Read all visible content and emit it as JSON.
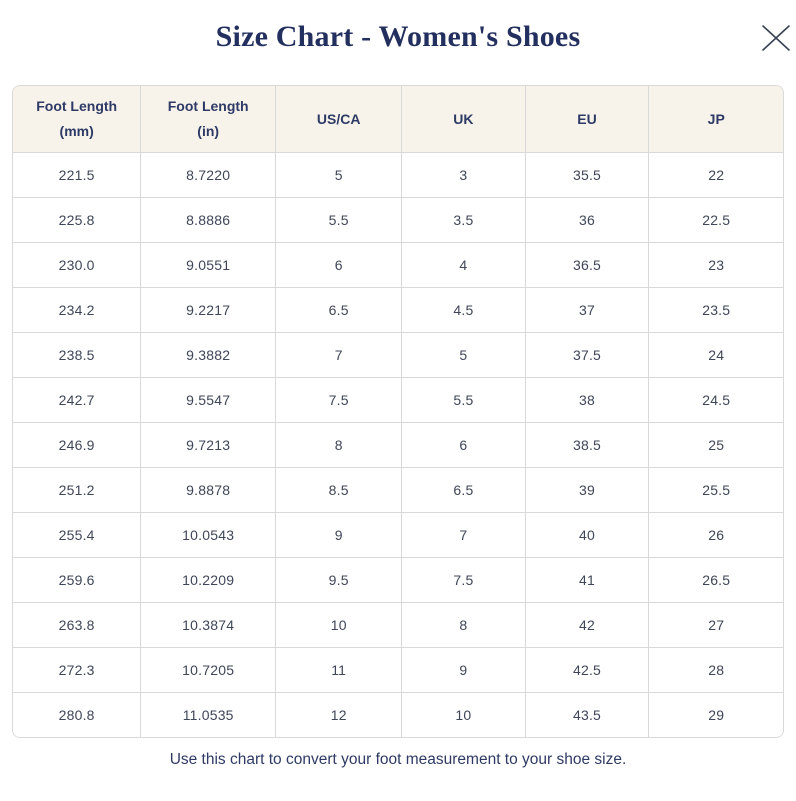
{
  "modal": {
    "title": "Size Chart - Women's Shoes",
    "footer_note": "Use this chart to convert your foot measurement to your shoe size.",
    "close_icon": "x-close"
  },
  "colors": {
    "title_text": "#232f5e",
    "header_bg": "#f7f3ea",
    "header_text": "#2e3a66",
    "cell_text": "#3f4657",
    "border": "#d9d9d9",
    "close_icon_stroke": "#3b4254"
  },
  "table": {
    "headers": [
      {
        "line1": "Foot Length",
        "line2": "(mm)"
      },
      {
        "line1": "Foot Length",
        "line2": "(in)"
      },
      {
        "line1": "US/CA",
        "line2": ""
      },
      {
        "line1": "UK",
        "line2": ""
      },
      {
        "line1": "EU",
        "line2": ""
      },
      {
        "line1": "JP",
        "line2": ""
      }
    ],
    "rows": [
      [
        "221.5",
        "8.7220",
        "5",
        "3",
        "35.5",
        "22"
      ],
      [
        "225.8",
        "8.8886",
        "5.5",
        "3.5",
        "36",
        "22.5"
      ],
      [
        "230.0",
        "9.0551",
        "6",
        "4",
        "36.5",
        "23"
      ],
      [
        "234.2",
        "9.2217",
        "6.5",
        "4.5",
        "37",
        "23.5"
      ],
      [
        "238.5",
        "9.3882",
        "7",
        "5",
        "37.5",
        "24"
      ],
      [
        "242.7",
        "9.5547",
        "7.5",
        "5.5",
        "38",
        "24.5"
      ],
      [
        "246.9",
        "9.7213",
        "8",
        "6",
        "38.5",
        "25"
      ],
      [
        "251.2",
        "9.8878",
        "8.5",
        "6.5",
        "39",
        "25.5"
      ],
      [
        "255.4",
        "10.0543",
        "9",
        "7",
        "40",
        "26"
      ],
      [
        "259.6",
        "10.2209",
        "9.5",
        "7.5",
        "41",
        "26.5"
      ],
      [
        "263.8",
        "10.3874",
        "10",
        "8",
        "42",
        "27"
      ],
      [
        "272.3",
        "10.7205",
        "11",
        "9",
        "42.5",
        "28"
      ],
      [
        "280.8",
        "11.0535",
        "12",
        "10",
        "43.5",
        "29"
      ]
    ]
  },
  "chart_data": {
    "type": "table",
    "title": "Size Chart - Women's Shoes",
    "columns": [
      "Foot Length (mm)",
      "Foot Length (in)",
      "US/CA",
      "UK",
      "EU",
      "JP"
    ],
    "rows": [
      [
        221.5,
        8.722,
        5,
        3,
        35.5,
        22
      ],
      [
        225.8,
        8.8886,
        5.5,
        3.5,
        36,
        22.5
      ],
      [
        230.0,
        9.0551,
        6,
        4,
        36.5,
        23
      ],
      [
        234.2,
        9.2217,
        6.5,
        4.5,
        37,
        23.5
      ],
      [
        238.5,
        9.3882,
        7,
        5,
        37.5,
        24
      ],
      [
        242.7,
        9.5547,
        7.5,
        5.5,
        38,
        24.5
      ],
      [
        246.9,
        9.7213,
        8,
        6,
        38.5,
        25
      ],
      [
        251.2,
        9.8878,
        8.5,
        6.5,
        39,
        25.5
      ],
      [
        255.4,
        10.0543,
        9,
        7,
        40,
        26
      ],
      [
        259.6,
        10.2209,
        9.5,
        7.5,
        41,
        26.5
      ],
      [
        263.8,
        10.3874,
        10,
        8,
        42,
        27
      ],
      [
        272.3,
        10.7205,
        11,
        9,
        42.5,
        28
      ],
      [
        280.8,
        11.0535,
        12,
        10,
        43.5,
        29
      ]
    ]
  }
}
